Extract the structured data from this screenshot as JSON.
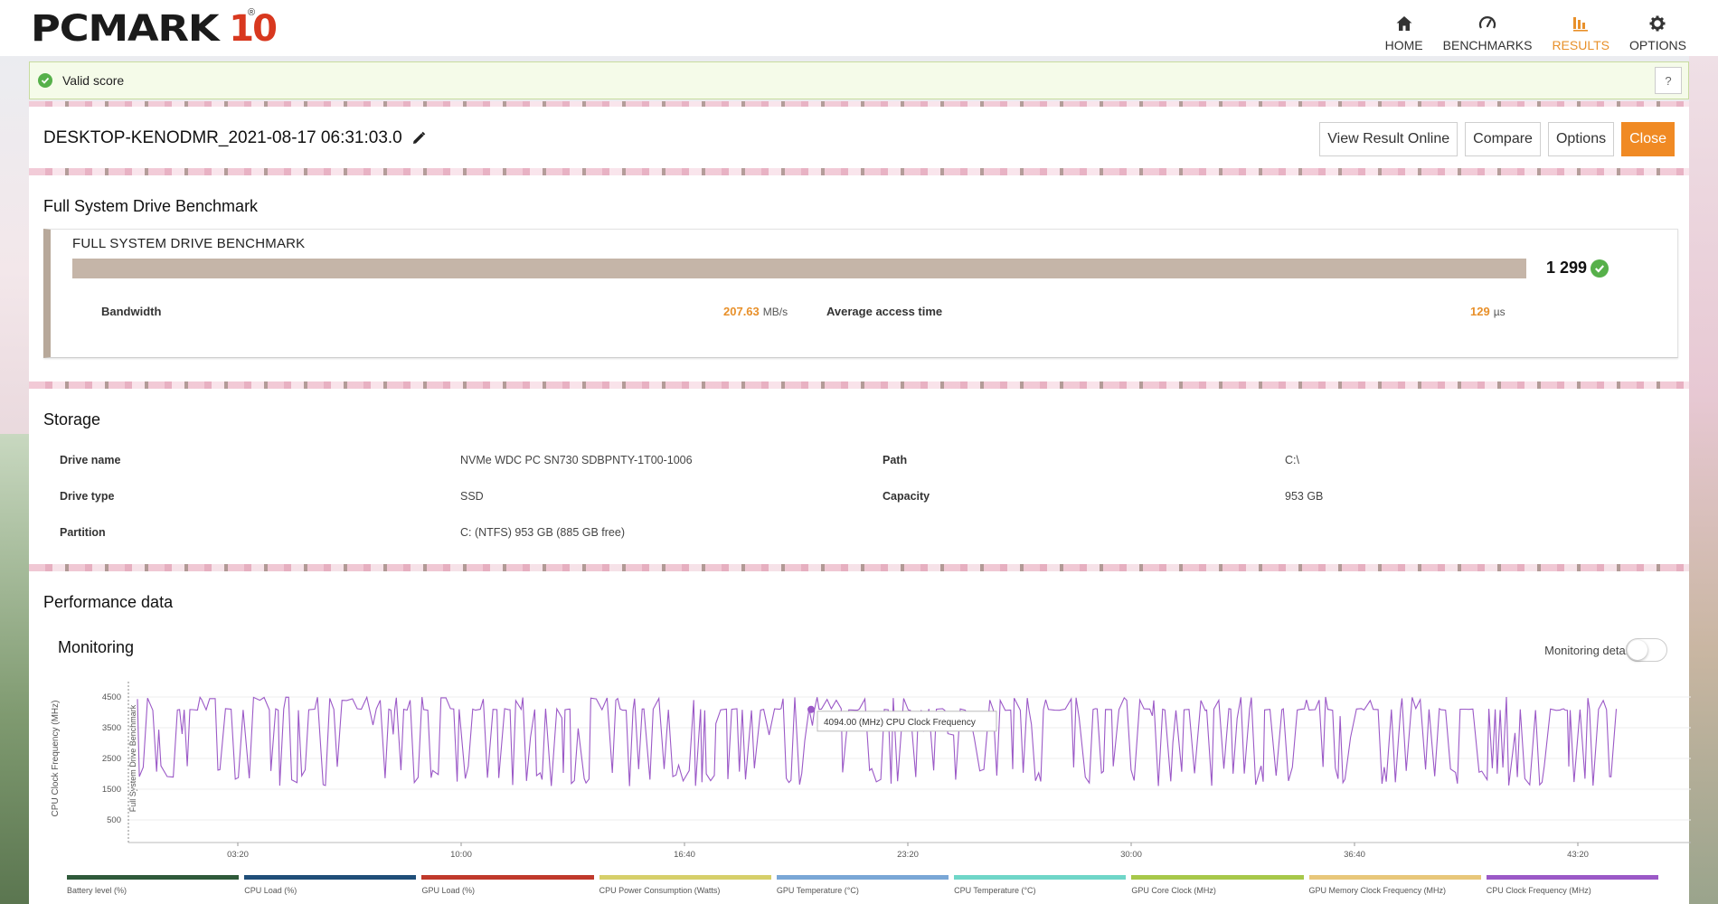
{
  "app": {
    "logo_text": "PCMARK",
    "logo_number": "10",
    "logo_reg": "®"
  },
  "nav": [
    {
      "label": "HOME",
      "icon": "home-icon",
      "active": false
    },
    {
      "label": "BENCHMARKS",
      "icon": "gauge-icon",
      "active": false
    },
    {
      "label": "RESULTS",
      "icon": "bar-chart-icon",
      "active": true
    },
    {
      "label": "OPTIONS",
      "icon": "gear-icon",
      "active": false
    }
  ],
  "status": {
    "text": "Valid score",
    "help": "?"
  },
  "result": {
    "title": "DESKTOP-KENODMR_2021-08-17 06:31:03.0",
    "buttons": {
      "view_online": "View Result Online",
      "compare": "Compare",
      "options": "Options",
      "close": "Close"
    }
  },
  "benchmark": {
    "section_title": "Full System Drive Benchmark",
    "card_label": "FULL SYSTEM DRIVE BENCHMARK",
    "score": "1 299",
    "bandwidth_label": "Bandwidth",
    "bandwidth_value": "207.63",
    "bandwidth_unit": "MB/s",
    "access_label": "Average access time",
    "access_value": "129",
    "access_unit": "µs"
  },
  "storage": {
    "section_title": "Storage",
    "drive_name_label": "Drive name",
    "drive_name": "NVMe WDC PC SN730 SDBPNTY-1T00-1006",
    "path_label": "Path",
    "path": "C:\\",
    "drive_type_label": "Drive type",
    "drive_type": "SSD",
    "capacity_label": "Capacity",
    "capacity": "953 GB",
    "partition_label": "Partition",
    "partition": "C: (NTFS) 953 GB (885 GB free)"
  },
  "performance": {
    "section_title": "Performance data",
    "monitoring_title": "Monitoring",
    "monitoring_details": "Monitoring details",
    "monitoring_details_on": false
  },
  "chart_data": {
    "type": "line",
    "ylabel": "CPU Clock Frequency (MHz)",
    "band_label": "Full System Drive Benchmark",
    "yticks": [
      500,
      1500,
      2500,
      3500,
      4500
    ],
    "ylim": [
      0,
      5000
    ],
    "xticks": [
      "03:20",
      "10:00",
      "16:40",
      "23:20",
      "30:00",
      "36:40",
      "43:20"
    ],
    "tooltip": "4094.00 (MHz) CPU Clock Frequency",
    "series_color": "#9b59c7",
    "baseline": 4094,
    "high": 4500,
    "low": 1600,
    "legend": [
      {
        "name": "Battery level (%)",
        "color": "#2f5a3a"
      },
      {
        "name": "CPU Load (%)",
        "color": "#1f4e79"
      },
      {
        "name": "GPU Load (%)",
        "color": "#c0392b"
      },
      {
        "name": "CPU Power Consumption (Watts)",
        "color": "#d6cf6a"
      },
      {
        "name": "GPU Temperature (°C)",
        "color": "#7aa7d6"
      },
      {
        "name": "CPU Temperature (°C)",
        "color": "#6fd6c8"
      },
      {
        "name": "GPU Core Clock (MHz)",
        "color": "#a7c84a"
      },
      {
        "name": "GPU Memory Clock Frequency (MHz)",
        "color": "#e8c77a"
      },
      {
        "name": "CPU Clock Frequency (MHz)",
        "color": "#9b59c7"
      }
    ]
  }
}
